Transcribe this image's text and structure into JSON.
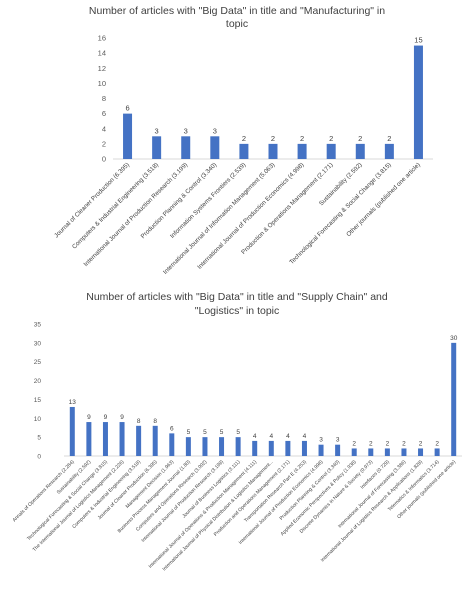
{
  "chart_data": [
    {
      "type": "bar",
      "title_lines": [
        "Number of articles with \"Big Data\" in title and \"Manufacturing\" in",
        "topic"
      ],
      "ylim": [
        0,
        16
      ],
      "yticks": [
        0,
        2,
        4,
        6,
        8,
        10,
        12,
        14,
        16
      ],
      "grid": false,
      "bar_color": "#4472c4",
      "categories": [
        "Journal of Cleaner Production (6.395)",
        "Computers & Industrial Engineering (3.518)",
        "International Journal of Production Research (3.199)",
        "Production Planning & Control (3.340)",
        "Information Systems Frontiers (2.539)",
        "International Journal of Information Management (5.063)",
        "International Journal of Production Economics (4.998)",
        "Production & Operations Management (2.171)",
        "Sustainability (2.592)",
        "Technological Forecasting & Social Change (3.815)",
        "Other journals (published one article)"
      ],
      "values": [
        6,
        3,
        3,
        3,
        2,
        2,
        2,
        2,
        2,
        2,
        15
      ]
    },
    {
      "type": "bar",
      "title_lines": [
        "Number of articles with \"Big Data\" in title and \"Supply Chain\" and",
        "\"Logistics\" in topic"
      ],
      "ylim": [
        0,
        35
      ],
      "yticks": [
        0,
        5,
        10,
        15,
        20,
        25,
        30,
        35
      ],
      "grid": false,
      "bar_color": "#4472c4",
      "categories": [
        "Annals of Operations Research (2.284)",
        "Sustainability (2.592)",
        "Technological Forecasting & Social Change (3.815)",
        "The International Journal of Logistics Management (2.226)",
        "Computers & Industrial Engineering (3.518)",
        "Journal of Cleaner Production (6.395)",
        "Management Decision (1.963)",
        "Business Process Management Journal (1.80)",
        "Computers and Operations Research (3.002)",
        "International Journal of Production Research (3.199)",
        "Journal of Business Logistics (3.111)",
        "International Journal of Operations & Production Management (4.111)",
        "International Journal of Physical Distribution & Logistics Management...",
        "Production and Operations Management (2.171)",
        "Transportation Research Part E (4.253)",
        "International Journal of Production Economics (4.998)",
        "Production Planning & Control (3.340)",
        "Applied Economic Perspectives & Policy (1.938)",
        "Discrete Dynamics in Nature & Society (0.973)",
        "Interfaces (0.729)",
        "International Journal of Forecasting (3.386)",
        "International Journal of Logistics Research & Applications (1.828)",
        "Telematics & Informatics (3.714)",
        "Other journals (published one article)"
      ],
      "values": [
        13,
        9,
        9,
        9,
        8,
        8,
        6,
        5,
        5,
        5,
        5,
        4,
        4,
        4,
        4,
        3,
        3,
        2,
        2,
        2,
        2,
        2,
        2,
        30
      ]
    }
  ]
}
